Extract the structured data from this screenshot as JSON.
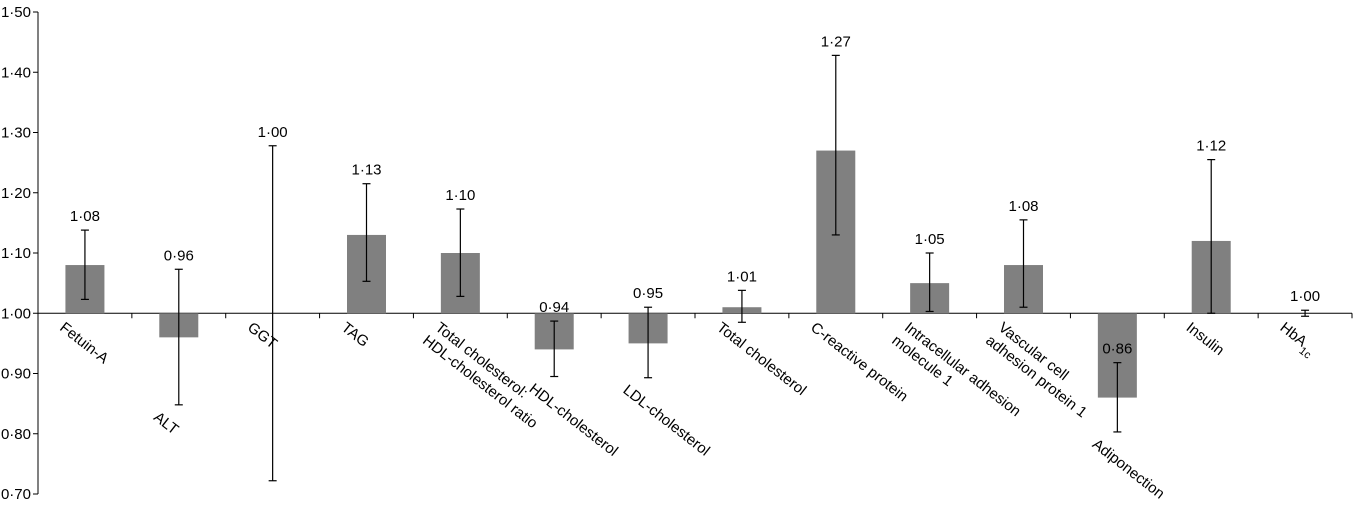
{
  "chart_data": {
    "type": "bar",
    "title": "",
    "xlabel": "",
    "ylabel": "",
    "ylim": [
      0.7,
      1.5
    ],
    "baseline": 1.0,
    "y_ticks": [
      "0·70",
      "0·80",
      "0·90",
      "1·00",
      "1·10",
      "1·20",
      "1·30",
      "1·40",
      "1·50"
    ],
    "y_tick_values": [
      0.7,
      0.8,
      0.9,
      1.0,
      1.1,
      1.2,
      1.3,
      1.4,
      1.5
    ],
    "bar_color": "#808080",
    "categories": [
      {
        "label": "Fetuin-A",
        "label_lines": [
          "Fetuin-A"
        ],
        "value": 1.08,
        "value_label": "1·08",
        "ci_low": 1.023,
        "ci_high": 1.138
      },
      {
        "label": "ALT",
        "label_lines": [
          "ALT"
        ],
        "value": 0.96,
        "value_label": "0·96",
        "ci_low": 0.848,
        "ci_high": 1.073
      },
      {
        "label": "GGT",
        "label_lines": [
          "GGT"
        ],
        "value": 1.0,
        "value_label": "1·00",
        "ci_low": 0.722,
        "ci_high": 1.278
      },
      {
        "label": "TAG",
        "label_lines": [
          "TAG"
        ],
        "value": 1.13,
        "value_label": "1·13",
        "ci_low": 1.053,
        "ci_high": 1.215
      },
      {
        "label": "Total cholesterol: HDL-cholesterol ratio",
        "label_lines": [
          "Total cholesterol:",
          "HDL-cholesterol ratio"
        ],
        "value": 1.1,
        "value_label": "1·10",
        "ci_low": 1.028,
        "ci_high": 1.173
      },
      {
        "label": "HDL-cholesterol",
        "label_lines": [
          "HDL-cholesterol"
        ],
        "value": 0.94,
        "value_label": "0·94",
        "ci_low": 0.895,
        "ci_high": 0.987
      },
      {
        "label": "LDL-cholesterol",
        "label_lines": [
          "LDL-cholesterol"
        ],
        "value": 0.95,
        "value_label": "0·95",
        "ci_low": 0.893,
        "ci_high": 1.01
      },
      {
        "label": "Total cholesterol",
        "label_lines": [
          "Total cholesterol"
        ],
        "value": 1.01,
        "value_label": "1·01",
        "ci_low": 0.985,
        "ci_high": 1.038
      },
      {
        "label": "C-reactive protein",
        "label_lines": [
          "C-reactive protein"
        ],
        "value": 1.27,
        "value_label": "1·27",
        "ci_low": 1.13,
        "ci_high": 1.428
      },
      {
        "label": "Intracellular adhesion molecule 1",
        "label_lines": [
          "Intracellular adhesion",
          "molecule 1"
        ],
        "value": 1.05,
        "value_label": "1·05",
        "ci_low": 1.003,
        "ci_high": 1.1
      },
      {
        "label": "Vascular cell adhesion protein 1",
        "label_lines": [
          "Vascular cell",
          "adhesion protein 1"
        ],
        "value": 1.08,
        "value_label": "1·08",
        "ci_low": 1.01,
        "ci_high": 1.155
      },
      {
        "label": "Adiponection",
        "label_lines": [
          "Adiponection"
        ],
        "value": 0.86,
        "value_label": "0·86",
        "ci_low": 0.803,
        "ci_high": 0.918
      },
      {
        "label": "Insulin",
        "label_lines": [
          "Insulin"
        ],
        "value": 1.12,
        "value_label": "1·12",
        "ci_low": 1.0,
        "ci_high": 1.255
      },
      {
        "label": "HbA1c",
        "label_lines": [
          "HbA1c"
        ],
        "label_main": "HbA",
        "label_sub": "1c",
        "value": 1.0,
        "value_label": "1·00",
        "ci_low": 0.995,
        "ci_high": 1.005
      }
    ]
  }
}
